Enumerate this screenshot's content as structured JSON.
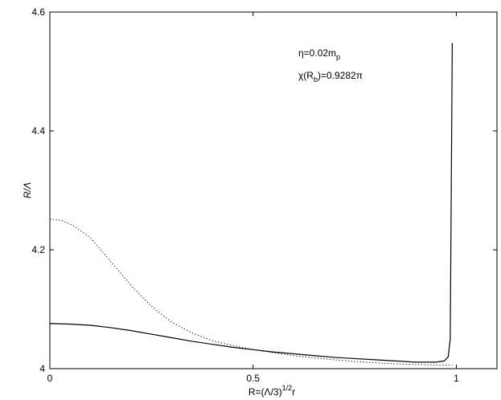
{
  "chart_data": {
    "type": "line",
    "title": "",
    "xlabel": {
      "base": "R=(Λ/3)",
      "sup": "1/2",
      "tail": "r"
    },
    "ylabel": "R/Λ",
    "xlim": [
      0,
      1.1
    ],
    "ylim": [
      4.0,
      4.6
    ],
    "xticks": [
      0,
      0.5,
      1
    ],
    "xtick_labels": [
      "0",
      "0.5",
      "1"
    ],
    "yticks": [
      4.0,
      4.2,
      4.4,
      4.6
    ],
    "ytick_labels": [
      "4",
      "4.2",
      "4.4",
      "4.6"
    ],
    "grid": false,
    "annotations": [
      {
        "base": "η=0.02m",
        "sub": "p",
        "tail": ""
      },
      {
        "base": "χ(R",
        "sub": "b",
        "tail": ")=0.9282π"
      }
    ],
    "series": [
      {
        "style": "solid",
        "color": "#000000",
        "x": [
          0,
          0.05,
          0.1,
          0.15,
          0.2,
          0.25,
          0.3,
          0.35,
          0.4,
          0.45,
          0.5,
          0.55,
          0.6,
          0.65,
          0.7,
          0.75,
          0.8,
          0.85,
          0.9,
          0.93,
          0.95,
          0.97,
          0.98,
          0.985,
          0.99
        ],
        "y": [
          4.076,
          4.075,
          4.073,
          4.069,
          4.064,
          4.058,
          4.052,
          4.046,
          4.041,
          4.036,
          4.032,
          4.028,
          4.025,
          4.022,
          4.019,
          4.017,
          4.015,
          4.013,
          4.011,
          4.011,
          4.011,
          4.013,
          4.02,
          4.05,
          4.548
        ]
      },
      {
        "style": "dotted",
        "color": "#000000",
        "x": [
          0,
          0.03,
          0.06,
          0.1,
          0.15,
          0.2,
          0.25,
          0.3,
          0.35,
          0.4,
          0.45,
          0.5,
          0.55,
          0.6,
          0.65,
          0.7,
          0.75,
          0.8,
          0.85,
          0.9,
          0.95,
          0.99
        ],
        "y": [
          4.252,
          4.249,
          4.24,
          4.22,
          4.18,
          4.14,
          4.105,
          4.078,
          4.06,
          4.047,
          4.039,
          4.032,
          4.027,
          4.022,
          4.018,
          4.015,
          4.012,
          4.01,
          4.008,
          4.007,
          4.006,
          4.006
        ]
      }
    ]
  }
}
